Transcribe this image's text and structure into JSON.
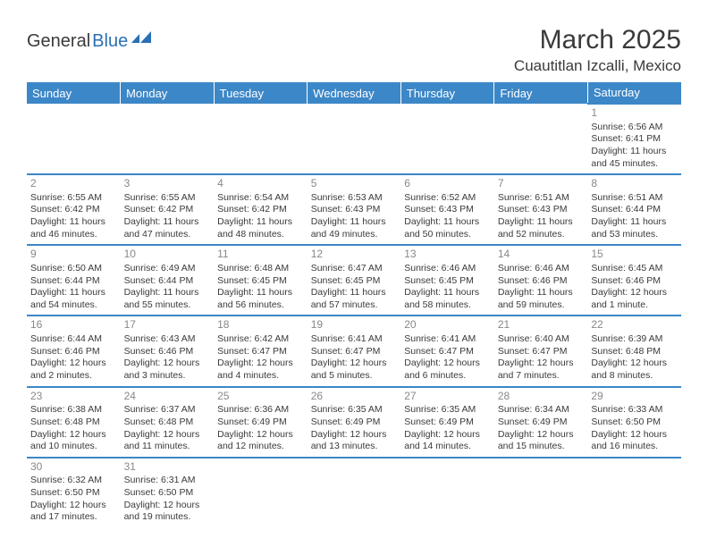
{
  "logo": {
    "text1": "General",
    "text2": "Blue"
  },
  "title": "March 2025",
  "location": "Cuautitlan Izcalli, Mexico",
  "colors": {
    "header_bg": "#3c87c7",
    "header_text": "#ffffff",
    "daynum": "#888888",
    "body_text": "#3a3a3a",
    "logo_blue": "#2a6fb5"
  },
  "weekdays": [
    "Sunday",
    "Monday",
    "Tuesday",
    "Wednesday",
    "Thursday",
    "Friday",
    "Saturday"
  ],
  "weeks": [
    [
      null,
      null,
      null,
      null,
      null,
      null,
      {
        "d": "1",
        "sr": "Sunrise: 6:56 AM",
        "ss": "Sunset: 6:41 PM",
        "dl": "Daylight: 11 hours and 45 minutes."
      }
    ],
    [
      {
        "d": "2",
        "sr": "Sunrise: 6:55 AM",
        "ss": "Sunset: 6:42 PM",
        "dl": "Daylight: 11 hours and 46 minutes."
      },
      {
        "d": "3",
        "sr": "Sunrise: 6:55 AM",
        "ss": "Sunset: 6:42 PM",
        "dl": "Daylight: 11 hours and 47 minutes."
      },
      {
        "d": "4",
        "sr": "Sunrise: 6:54 AM",
        "ss": "Sunset: 6:42 PM",
        "dl": "Daylight: 11 hours and 48 minutes."
      },
      {
        "d": "5",
        "sr": "Sunrise: 6:53 AM",
        "ss": "Sunset: 6:43 PM",
        "dl": "Daylight: 11 hours and 49 minutes."
      },
      {
        "d": "6",
        "sr": "Sunrise: 6:52 AM",
        "ss": "Sunset: 6:43 PM",
        "dl": "Daylight: 11 hours and 50 minutes."
      },
      {
        "d": "7",
        "sr": "Sunrise: 6:51 AM",
        "ss": "Sunset: 6:43 PM",
        "dl": "Daylight: 11 hours and 52 minutes."
      },
      {
        "d": "8",
        "sr": "Sunrise: 6:51 AM",
        "ss": "Sunset: 6:44 PM",
        "dl": "Daylight: 11 hours and 53 minutes."
      }
    ],
    [
      {
        "d": "9",
        "sr": "Sunrise: 6:50 AM",
        "ss": "Sunset: 6:44 PM",
        "dl": "Daylight: 11 hours and 54 minutes."
      },
      {
        "d": "10",
        "sr": "Sunrise: 6:49 AM",
        "ss": "Sunset: 6:44 PM",
        "dl": "Daylight: 11 hours and 55 minutes."
      },
      {
        "d": "11",
        "sr": "Sunrise: 6:48 AM",
        "ss": "Sunset: 6:45 PM",
        "dl": "Daylight: 11 hours and 56 minutes."
      },
      {
        "d": "12",
        "sr": "Sunrise: 6:47 AM",
        "ss": "Sunset: 6:45 PM",
        "dl": "Daylight: 11 hours and 57 minutes."
      },
      {
        "d": "13",
        "sr": "Sunrise: 6:46 AM",
        "ss": "Sunset: 6:45 PM",
        "dl": "Daylight: 11 hours and 58 minutes."
      },
      {
        "d": "14",
        "sr": "Sunrise: 6:46 AM",
        "ss": "Sunset: 6:46 PM",
        "dl": "Daylight: 11 hours and 59 minutes."
      },
      {
        "d": "15",
        "sr": "Sunrise: 6:45 AM",
        "ss": "Sunset: 6:46 PM",
        "dl": "Daylight: 12 hours and 1 minute."
      }
    ],
    [
      {
        "d": "16",
        "sr": "Sunrise: 6:44 AM",
        "ss": "Sunset: 6:46 PM",
        "dl": "Daylight: 12 hours and 2 minutes."
      },
      {
        "d": "17",
        "sr": "Sunrise: 6:43 AM",
        "ss": "Sunset: 6:46 PM",
        "dl": "Daylight: 12 hours and 3 minutes."
      },
      {
        "d": "18",
        "sr": "Sunrise: 6:42 AM",
        "ss": "Sunset: 6:47 PM",
        "dl": "Daylight: 12 hours and 4 minutes."
      },
      {
        "d": "19",
        "sr": "Sunrise: 6:41 AM",
        "ss": "Sunset: 6:47 PM",
        "dl": "Daylight: 12 hours and 5 minutes."
      },
      {
        "d": "20",
        "sr": "Sunrise: 6:41 AM",
        "ss": "Sunset: 6:47 PM",
        "dl": "Daylight: 12 hours and 6 minutes."
      },
      {
        "d": "21",
        "sr": "Sunrise: 6:40 AM",
        "ss": "Sunset: 6:47 PM",
        "dl": "Daylight: 12 hours and 7 minutes."
      },
      {
        "d": "22",
        "sr": "Sunrise: 6:39 AM",
        "ss": "Sunset: 6:48 PM",
        "dl": "Daylight: 12 hours and 8 minutes."
      }
    ],
    [
      {
        "d": "23",
        "sr": "Sunrise: 6:38 AM",
        "ss": "Sunset: 6:48 PM",
        "dl": "Daylight: 12 hours and 10 minutes."
      },
      {
        "d": "24",
        "sr": "Sunrise: 6:37 AM",
        "ss": "Sunset: 6:48 PM",
        "dl": "Daylight: 12 hours and 11 minutes."
      },
      {
        "d": "25",
        "sr": "Sunrise: 6:36 AM",
        "ss": "Sunset: 6:49 PM",
        "dl": "Daylight: 12 hours and 12 minutes."
      },
      {
        "d": "26",
        "sr": "Sunrise: 6:35 AM",
        "ss": "Sunset: 6:49 PM",
        "dl": "Daylight: 12 hours and 13 minutes."
      },
      {
        "d": "27",
        "sr": "Sunrise: 6:35 AM",
        "ss": "Sunset: 6:49 PM",
        "dl": "Daylight: 12 hours and 14 minutes."
      },
      {
        "d": "28",
        "sr": "Sunrise: 6:34 AM",
        "ss": "Sunset: 6:49 PM",
        "dl": "Daylight: 12 hours and 15 minutes."
      },
      {
        "d": "29",
        "sr": "Sunrise: 6:33 AM",
        "ss": "Sunset: 6:50 PM",
        "dl": "Daylight: 12 hours and 16 minutes."
      }
    ],
    [
      {
        "d": "30",
        "sr": "Sunrise: 6:32 AM",
        "ss": "Sunset: 6:50 PM",
        "dl": "Daylight: 12 hours and 17 minutes."
      },
      {
        "d": "31",
        "sr": "Sunrise: 6:31 AM",
        "ss": "Sunset: 6:50 PM",
        "dl": "Daylight: 12 hours and 19 minutes."
      },
      null,
      null,
      null,
      null,
      null
    ]
  ]
}
